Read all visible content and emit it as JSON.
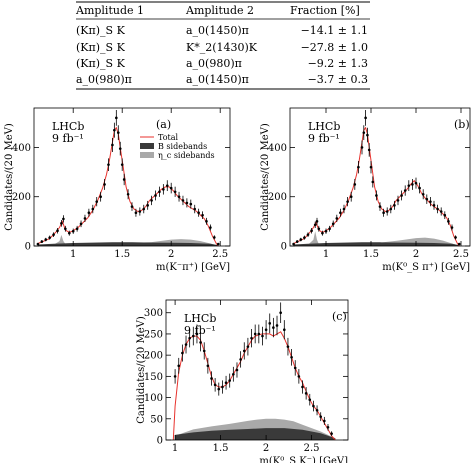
{
  "table": {
    "headers": [
      "Amplitude 1",
      "Amplitude 2",
      "Fraction [%]"
    ],
    "rows": [
      [
        "(Kπ)_S K",
        "a_0(1450)π",
        "−14.1 ± 1.1"
      ],
      [
        "(Kπ)_S K",
        "K*_2(1430)K",
        "−27.8 ± 1.0"
      ],
      [
        "(Kπ)_S K",
        "a_0(980)π",
        "−9.2 ± 1.3"
      ],
      [
        "a_0(980)π",
        "a_0(1450)π",
        "−3.7 ± 0.3"
      ]
    ]
  },
  "chart_data": [
    {
      "type": "line",
      "panel_label": "(a)",
      "experiment": "LHCb",
      "luminosity": "9 fb⁻¹",
      "xlabel": "m(K⁻π⁺) [GeV]",
      "ylabel": "Candidates/(20 MeV)",
      "xlim": [
        0.6,
        2.6
      ],
      "ylim": [
        0,
        560
      ],
      "xticks": [
        1,
        1.5,
        2,
        2.5
      ],
      "yticks": [
        0,
        200,
        400
      ],
      "legend": [
        "Total",
        "B sidebands",
        "η_c sidebands"
      ],
      "legend_position": "top-right",
      "series": [
        {
          "name": "Total",
          "color": "#e8322d",
          "x": [
            0.64,
            0.7,
            0.76,
            0.82,
            0.86,
            0.89,
            0.92,
            0.96,
            1.0,
            1.05,
            1.1,
            1.15,
            1.2,
            1.25,
            1.3,
            1.34,
            1.37,
            1.4,
            1.42,
            1.44,
            1.46,
            1.48,
            1.51,
            1.54,
            1.58,
            1.62,
            1.66,
            1.7,
            1.74,
            1.78,
            1.82,
            1.86,
            1.9,
            1.94,
            1.98,
            2.02,
            2.06,
            2.1,
            2.14,
            2.18,
            2.22,
            2.26,
            2.3,
            2.34,
            2.38,
            2.42,
            2.46,
            2.48
          ],
          "y": [
            10,
            20,
            30,
            55,
            75,
            100,
            65,
            55,
            62,
            75,
            95,
            115,
            145,
            185,
            235,
            290,
            350,
            420,
            470,
            480,
            455,
            400,
            320,
            240,
            180,
            150,
            140,
            145,
            160,
            185,
            200,
            215,
            230,
            240,
            240,
            225,
            205,
            190,
            175,
            160,
            150,
            140,
            125,
            110,
            80,
            40,
            10,
            0
          ]
        },
        {
          "name": "Data",
          "x": [
            0.64,
            0.68,
            0.72,
            0.76,
            0.8,
            0.84,
            0.88,
            0.9,
            0.92,
            0.96,
            1.0,
            1.04,
            1.08,
            1.12,
            1.16,
            1.2,
            1.24,
            1.28,
            1.32,
            1.36,
            1.4,
            1.42,
            1.44,
            1.46,
            1.48,
            1.5,
            1.52,
            1.56,
            1.6,
            1.64,
            1.68,
            1.72,
            1.76,
            1.8,
            1.84,
            1.88,
            1.92,
            1.96,
            2.0,
            2.04,
            2.08,
            2.12,
            2.16,
            2.2,
            2.24,
            2.28,
            2.32,
            2.36,
            2.4,
            2.44,
            2.48
          ],
          "y": [
            8,
            18,
            26,
            34,
            46,
            62,
            92,
            110,
            70,
            52,
            60,
            70,
            90,
            112,
            135,
            150,
            180,
            200,
            250,
            330,
            410,
            470,
            520,
            460,
            395,
            330,
            270,
            210,
            160,
            135,
            140,
            150,
            165,
            185,
            205,
            220,
            230,
            245,
            235,
            220,
            200,
            185,
            175,
            170,
            150,
            135,
            125,
            100,
            75,
            35,
            8
          ]
        },
        {
          "name": "B sidebands",
          "color": "#3a3a3a",
          "x": [
            0.64,
            0.8,
            1.0,
            1.2,
            1.4,
            1.6,
            1.8,
            2.0,
            2.2,
            2.4,
            2.48
          ],
          "y": [
            6,
            9,
            12,
            14,
            15,
            15,
            14,
            13,
            12,
            9,
            3
          ]
        },
        {
          "name": "η_c sidebands",
          "color": "#a9a9a9",
          "x": [
            0.64,
            0.8,
            0.86,
            0.88,
            0.9,
            0.92,
            0.96,
            1.1,
            1.4,
            1.6,
            1.8,
            2.0,
            2.1,
            2.2,
            2.3,
            2.4,
            2.48
          ],
          "y": [
            3,
            5,
            20,
            45,
            20,
            8,
            6,
            8,
            10,
            12,
            16,
            26,
            28,
            26,
            20,
            10,
            2
          ]
        }
      ]
    },
    {
      "type": "line",
      "panel_label": "(b)",
      "experiment": "LHCb",
      "luminosity": "9 fb⁻¹",
      "xlabel": "m(K⁰_S π⁺) [GeV]",
      "ylabel": "Candidates/(20 MeV)",
      "xlim": [
        0.6,
        2.6
      ],
      "ylim": [
        0,
        560
      ],
      "xticks": [
        1,
        1.5,
        2,
        2.5
      ],
      "yticks": [
        0,
        200,
        400
      ],
      "series": [
        {
          "name": "Total",
          "color": "#e8322d",
          "x": [
            0.64,
            0.7,
            0.76,
            0.82,
            0.86,
            0.89,
            0.92,
            0.96,
            1.0,
            1.05,
            1.1,
            1.15,
            1.2,
            1.25,
            1.3,
            1.34,
            1.37,
            1.4,
            1.42,
            1.44,
            1.46,
            1.48,
            1.51,
            1.54,
            1.58,
            1.62,
            1.66,
            1.7,
            1.74,
            1.78,
            1.82,
            1.86,
            1.9,
            1.94,
            1.98,
            2.02,
            2.06,
            2.1,
            2.14,
            2.18,
            2.22,
            2.26,
            2.3,
            2.34,
            2.38,
            2.42,
            2.46,
            2.48
          ],
          "y": [
            10,
            20,
            30,
            55,
            75,
            95,
            65,
            55,
            62,
            75,
            95,
            115,
            145,
            185,
            235,
            290,
            350,
            420,
            470,
            480,
            455,
            400,
            320,
            240,
            180,
            150,
            140,
            145,
            160,
            185,
            200,
            215,
            230,
            250,
            265,
            245,
            215,
            195,
            180,
            165,
            155,
            145,
            130,
            115,
            85,
            40,
            10,
            0
          ]
        },
        {
          "name": "Data",
          "x": [
            0.64,
            0.68,
            0.72,
            0.76,
            0.8,
            0.84,
            0.88,
            0.9,
            0.92,
            0.96,
            1.0,
            1.04,
            1.08,
            1.12,
            1.16,
            1.2,
            1.24,
            1.28,
            1.32,
            1.36,
            1.4,
            1.42,
            1.44,
            1.46,
            1.48,
            1.5,
            1.52,
            1.56,
            1.6,
            1.64,
            1.68,
            1.72,
            1.76,
            1.8,
            1.84,
            1.88,
            1.92,
            1.96,
            2.0,
            2.04,
            2.08,
            2.12,
            2.16,
            2.2,
            2.24,
            2.28,
            2.32,
            2.36,
            2.4,
            2.44,
            2.48
          ],
          "y": [
            8,
            18,
            26,
            34,
            46,
            62,
            86,
            100,
            70,
            52,
            60,
            70,
            90,
            112,
            135,
            150,
            180,
            200,
            250,
            320,
            400,
            460,
            520,
            450,
            390,
            320,
            260,
            205,
            160,
            135,
            140,
            150,
            165,
            185,
            205,
            225,
            245,
            250,
            255,
            235,
            210,
            190,
            180,
            165,
            150,
            140,
            125,
            100,
            75,
            35,
            8
          ]
        },
        {
          "name": "B sidebands",
          "color": "#3a3a3a",
          "x": [
            0.64,
            0.8,
            1.0,
            1.2,
            1.4,
            1.6,
            1.8,
            2.0,
            2.2,
            2.4,
            2.48
          ],
          "y": [
            6,
            9,
            12,
            14,
            15,
            15,
            14,
            13,
            12,
            9,
            3
          ]
        },
        {
          "name": "η_c sidebands",
          "color": "#a9a9a9",
          "x": [
            0.64,
            0.8,
            0.86,
            0.88,
            0.9,
            0.92,
            0.96,
            1.1,
            1.4,
            1.6,
            1.8,
            2.0,
            2.1,
            2.2,
            2.3,
            2.4,
            2.48
          ],
          "y": [
            3,
            5,
            25,
            60,
            25,
            8,
            6,
            8,
            10,
            14,
            22,
            32,
            34,
            30,
            22,
            10,
            2
          ]
        }
      ]
    },
    {
      "type": "line",
      "panel_label": "(c)",
      "experiment": "LHCb",
      "luminosity": "9 fb⁻¹",
      "xlabel": "m(K⁰_S K⁻) [GeV]",
      "ylabel": "Candidates/(20 MeV)",
      "xlim": [
        0.9,
        2.9
      ],
      "ylim": [
        0,
        330
      ],
      "xticks": [
        1,
        1.5,
        2,
        2.5
      ],
      "yticks": [
        0,
        50,
        100,
        150,
        200,
        250,
        300
      ],
      "series": [
        {
          "name": "Total",
          "color": "#e8322d",
          "x": [
            0.98,
            1.0,
            1.04,
            1.08,
            1.12,
            1.16,
            1.2,
            1.24,
            1.28,
            1.32,
            1.36,
            1.4,
            1.44,
            1.48,
            1.52,
            1.56,
            1.6,
            1.64,
            1.68,
            1.72,
            1.76,
            1.8,
            1.84,
            1.88,
            1.92,
            1.96,
            2.0,
            2.04,
            2.08,
            2.12,
            2.16,
            2.2,
            2.24,
            2.28,
            2.32,
            2.36,
            2.4,
            2.44,
            2.48,
            2.52,
            2.56,
            2.6,
            2.64,
            2.68,
            2.72,
            2.76
          ],
          "y": [
            0,
            80,
            160,
            200,
            225,
            240,
            245,
            245,
            235,
            210,
            180,
            150,
            130,
            125,
            125,
            130,
            140,
            155,
            170,
            185,
            205,
            220,
            235,
            245,
            248,
            250,
            250,
            250,
            245,
            250,
            255,
            240,
            220,
            195,
            170,
            150,
            135,
            115,
            95,
            80,
            70,
            55,
            40,
            25,
            10,
            0
          ]
        },
        {
          "name": "Data",
          "x": [
            1.0,
            1.04,
            1.08,
            1.12,
            1.16,
            1.2,
            1.24,
            1.28,
            1.32,
            1.36,
            1.4,
            1.44,
            1.48,
            1.52,
            1.56,
            1.6,
            1.64,
            1.68,
            1.72,
            1.76,
            1.8,
            1.84,
            1.88,
            1.92,
            1.96,
            2.0,
            2.04,
            2.08,
            2.12,
            2.16,
            2.2,
            2.24,
            2.28,
            2.32,
            2.36,
            2.4,
            2.44,
            2.48,
            2.52,
            2.56,
            2.6,
            2.64,
            2.68,
            2.72
          ],
          "y": [
            150,
            175,
            205,
            225,
            240,
            245,
            250,
            230,
            210,
            175,
            145,
            130,
            120,
            125,
            135,
            140,
            155,
            165,
            190,
            210,
            220,
            240,
            250,
            250,
            245,
            260,
            275,
            265,
            270,
            300,
            260,
            220,
            195,
            170,
            150,
            125,
            110,
            95,
            80,
            70,
            55,
            45,
            30,
            15
          ]
        },
        {
          "name": "B sidebands",
          "color": "#3a3a3a",
          "x": [
            1.0,
            1.2,
            1.4,
            1.6,
            1.8,
            2.0,
            2.2,
            2.4,
            2.6,
            2.76
          ],
          "y": [
            12,
            18,
            22,
            24,
            26,
            28,
            28,
            24,
            16,
            4
          ]
        },
        {
          "name": "η_c sidebands",
          "color": "#a9a9a9",
          "x": [
            1.0,
            1.2,
            1.4,
            1.6,
            1.8,
            1.9,
            2.0,
            2.1,
            2.2,
            2.3,
            2.4,
            2.6,
            2.76
          ],
          "y": [
            10,
            25,
            32,
            38,
            45,
            48,
            50,
            50,
            48,
            44,
            36,
            20,
            4
          ]
        }
      ]
    }
  ]
}
